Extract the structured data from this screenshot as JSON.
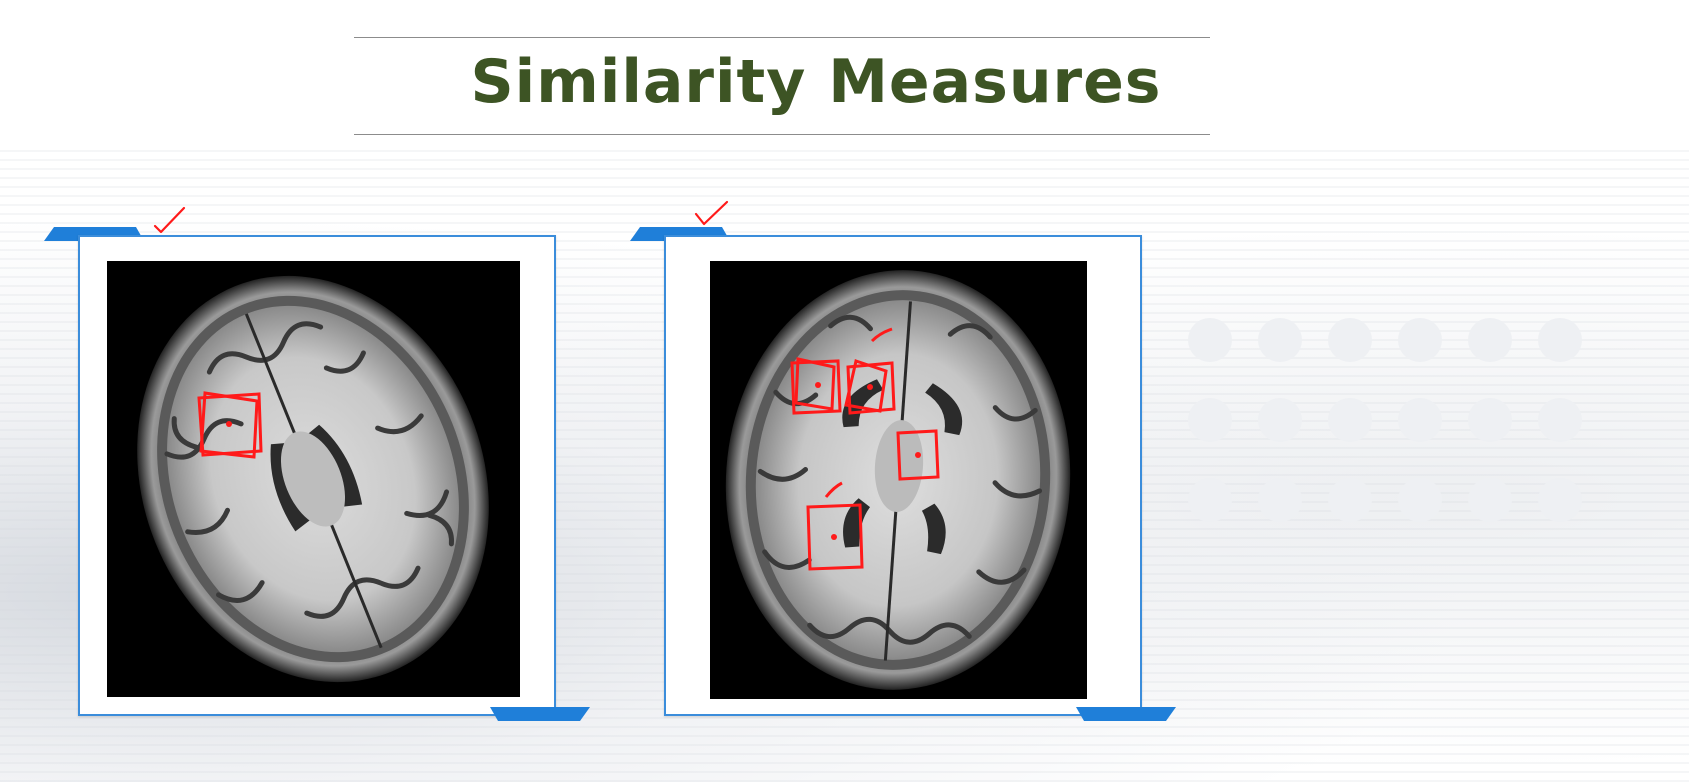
{
  "slide": {
    "title": "Similarity Measures"
  },
  "colors": {
    "title": "#3d5424",
    "frame_border": "#3b8ddb",
    "tab_fill": "#1f7fd9",
    "annotation": "#ff1a1a"
  },
  "images": [
    {
      "description_icon": "brain-mri-axial-scan",
      "annotation_boxes": 1
    },
    {
      "description_icon": "brain-mri-axial-scan",
      "annotation_boxes": 4
    }
  ]
}
